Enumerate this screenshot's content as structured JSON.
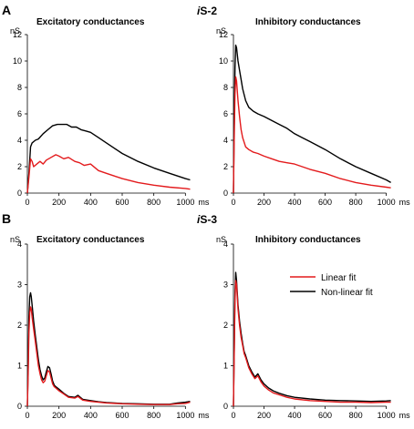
{
  "panels": [
    {
      "letter": "A",
      "title_prefix": "i",
      "title_suffix": "S-2"
    },
    {
      "letter": "B",
      "title_prefix": "i",
      "title_suffix": "S-3"
    }
  ],
  "legend": {
    "linear": "Linear fit",
    "nonlinear": "Non-linear fit"
  },
  "colors": {
    "linear": "#e31a1c",
    "nonlinear": "#000000"
  },
  "chart_data": [
    {
      "type": "line",
      "panel": "A",
      "title": "Excitatory conductances",
      "xlabel": "ms",
      "ylabel": "nS",
      "xlim": [
        0,
        1050
      ],
      "ylim": [
        0,
        12
      ],
      "xticks": [
        0,
        200,
        400,
        600,
        800,
        1000
      ],
      "yticks": [
        0,
        2,
        4,
        6,
        8,
        10,
        12
      ],
      "series": [
        {
          "name": "Linear fit",
          "color": "#e31a1c",
          "x": [
            0,
            10,
            20,
            30,
            40,
            60,
            80,
            100,
            120,
            150,
            180,
            200,
            230,
            260,
            300,
            330,
            360,
            400,
            450,
            500,
            550,
            600,
            700,
            800,
            900,
            1000,
            1030
          ],
          "y": [
            0,
            1.2,
            2.6,
            2.4,
            2.0,
            2.2,
            2.4,
            2.2,
            2.5,
            2.7,
            2.9,
            2.8,
            2.6,
            2.7,
            2.4,
            2.3,
            2.1,
            2.2,
            1.7,
            1.5,
            1.3,
            1.1,
            0.8,
            0.6,
            0.45,
            0.35,
            0.3
          ]
        },
        {
          "name": "Non-linear fit",
          "color": "#000000",
          "x": [
            0,
            10,
            20,
            30,
            50,
            70,
            100,
            130,
            160,
            190,
            220,
            250,
            280,
            310,
            340,
            370,
            400,
            450,
            500,
            550,
            600,
            700,
            800,
            900,
            1000,
            1030
          ],
          "y": [
            0,
            1.5,
            3.5,
            3.8,
            4.0,
            4.1,
            4.5,
            4.8,
            5.1,
            5.2,
            5.2,
            5.2,
            5.0,
            5.0,
            4.8,
            4.7,
            4.6,
            4.2,
            3.8,
            3.4,
            3.0,
            2.4,
            1.9,
            1.5,
            1.1,
            1.0
          ]
        }
      ]
    },
    {
      "type": "line",
      "panel": "A",
      "title": "Inhibitory conductances",
      "xlabel": "ms",
      "ylabel": "nS",
      "xlim": [
        0,
        1050
      ],
      "ylim": [
        0,
        12
      ],
      "xticks": [
        0,
        200,
        400,
        600,
        800,
        1000
      ],
      "yticks": [
        0,
        2,
        4,
        6,
        8,
        10,
        12
      ],
      "series": [
        {
          "name": "Linear fit",
          "color": "#e31a1c",
          "x": [
            0,
            5,
            10,
            15,
            20,
            30,
            40,
            50,
            60,
            80,
            100,
            130,
            160,
            200,
            250,
            300,
            350,
            400,
            450,
            500,
            600,
            700,
            800,
            900,
            1000,
            1030
          ],
          "y": [
            0,
            4,
            7.5,
            8.8,
            8.5,
            7.0,
            5.8,
            4.8,
            4.2,
            3.5,
            3.3,
            3.1,
            3.0,
            2.8,
            2.6,
            2.4,
            2.3,
            2.2,
            2.0,
            1.8,
            1.5,
            1.1,
            0.8,
            0.6,
            0.45,
            0.4
          ]
        },
        {
          "name": "Non-linear fit",
          "color": "#000000",
          "x": [
            0,
            5,
            10,
            15,
            20,
            30,
            40,
            50,
            60,
            80,
            100,
            130,
            160,
            200,
            250,
            300,
            350,
            400,
            450,
            500,
            600,
            700,
            800,
            900,
            1000,
            1030
          ],
          "y": [
            0,
            5,
            9.5,
            11.2,
            11.0,
            10.0,
            9.3,
            8.6,
            7.9,
            7.0,
            6.5,
            6.2,
            6.0,
            5.8,
            5.5,
            5.2,
            4.9,
            4.5,
            4.2,
            3.9,
            3.3,
            2.6,
            2.0,
            1.5,
            1.0,
            0.8
          ]
        }
      ]
    },
    {
      "type": "line",
      "panel": "B",
      "title": "Excitatory conductances",
      "xlabel": "ms",
      "ylabel": "nS",
      "xlim": [
        0,
        1050
      ],
      "ylim": [
        0,
        4
      ],
      "xticks": [
        0,
        200,
        400,
        600,
        800,
        1000
      ],
      "yticks": [
        0,
        1,
        2,
        3,
        4
      ],
      "series": [
        {
          "name": "Linear fit",
          "color": "#e31a1c",
          "x": [
            0,
            5,
            10,
            15,
            20,
            25,
            30,
            40,
            50,
            60,
            70,
            80,
            90,
            100,
            110,
            120,
            130,
            140,
            150,
            160,
            170,
            180,
            200,
            230,
            260,
            300,
            320,
            350,
            400,
            450,
            500,
            600,
            700,
            800,
            900,
            950,
            1000,
            1030
          ],
          "y": [
            0,
            0.8,
            1.8,
            2.3,
            2.45,
            2.4,
            2.2,
            1.9,
            1.6,
            1.3,
            1.0,
            0.8,
            0.65,
            0.58,
            0.62,
            0.75,
            0.88,
            0.85,
            0.7,
            0.55,
            0.48,
            0.45,
            0.38,
            0.3,
            0.22,
            0.2,
            0.24,
            0.15,
            0.12,
            0.1,
            0.08,
            0.06,
            0.05,
            0.04,
            0.04,
            0.06,
            0.07,
            0.1
          ]
        },
        {
          "name": "Non-linear fit",
          "color": "#000000",
          "x": [
            0,
            5,
            10,
            15,
            20,
            25,
            30,
            40,
            50,
            60,
            70,
            80,
            90,
            100,
            110,
            120,
            130,
            140,
            150,
            160,
            170,
            180,
            200,
            230,
            260,
            300,
            320,
            350,
            400,
            450,
            500,
            600,
            700,
            800,
            900,
            950,
            1000,
            1030
          ],
          "y": [
            0,
            1.0,
            2.2,
            2.7,
            2.8,
            2.7,
            2.5,
            2.1,
            1.75,
            1.45,
            1.15,
            0.9,
            0.75,
            0.65,
            0.7,
            0.85,
            0.98,
            0.95,
            0.8,
            0.62,
            0.52,
            0.48,
            0.42,
            0.32,
            0.24,
            0.22,
            0.27,
            0.17,
            0.14,
            0.11,
            0.09,
            0.07,
            0.06,
            0.05,
            0.05,
            0.08,
            0.1,
            0.12
          ]
        }
      ]
    },
    {
      "type": "line",
      "panel": "B",
      "title": "Inhibitory conductances",
      "xlabel": "ms",
      "ylabel": "nS",
      "xlim": [
        0,
        1050
      ],
      "ylim": [
        0,
        4
      ],
      "xticks": [
        0,
        200,
        400,
        600,
        800,
        1000
      ],
      "yticks": [
        0,
        1,
        2,
        3,
        4
      ],
      "series": [
        {
          "name": "Linear fit",
          "color": "#e31a1c",
          "x": [
            0,
            5,
            10,
            15,
            20,
            25,
            30,
            40,
            50,
            60,
            70,
            80,
            100,
            120,
            140,
            160,
            180,
            200,
            230,
            260,
            300,
            350,
            400,
            500,
            600,
            700,
            800,
            900,
            1000,
            1030
          ],
          "y": [
            0,
            1.2,
            2.6,
            3.1,
            3.0,
            2.7,
            2.4,
            2.0,
            1.7,
            1.5,
            1.3,
            1.2,
            0.95,
            0.8,
            0.68,
            0.75,
            0.6,
            0.5,
            0.4,
            0.33,
            0.28,
            0.22,
            0.18,
            0.14,
            0.12,
            0.1,
            0.1,
            0.09,
            0.1,
            0.1
          ]
        },
        {
          "name": "Non-linear fit",
          "color": "#000000",
          "x": [
            0,
            5,
            10,
            15,
            20,
            25,
            30,
            40,
            50,
            60,
            70,
            80,
            100,
            120,
            140,
            160,
            180,
            200,
            230,
            260,
            300,
            350,
            400,
            500,
            600,
            700,
            800,
            900,
            1000,
            1030
          ],
          "y": [
            0,
            1.3,
            2.8,
            3.3,
            3.1,
            2.8,
            2.5,
            2.1,
            1.8,
            1.55,
            1.35,
            1.25,
            1.0,
            0.85,
            0.72,
            0.8,
            0.65,
            0.55,
            0.45,
            0.38,
            0.32,
            0.26,
            0.22,
            0.18,
            0.15,
            0.14,
            0.13,
            0.12,
            0.13,
            0.14
          ]
        }
      ]
    }
  ]
}
